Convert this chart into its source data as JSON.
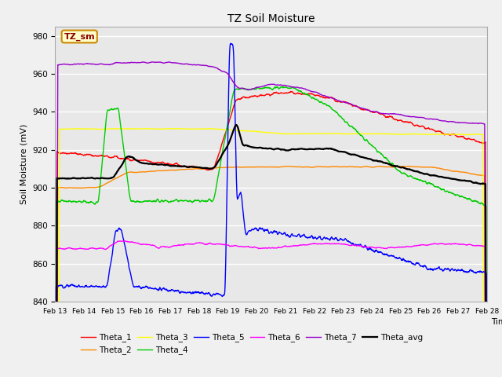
{
  "title": "TZ Soil Moisture",
  "xlabel": "Time",
  "ylabel": "Soil Moisture (mV)",
  "ylim": [
    840,
    985
  ],
  "xlim": [
    0,
    15
  ],
  "x_tick_labels": [
    "Feb 13",
    "Feb 14",
    "Feb 15",
    "Feb 16",
    "Feb 17",
    "Feb 18",
    "Feb 19",
    "Feb 20",
    "Feb 21",
    "Feb 22",
    "Feb 23",
    "Feb 24",
    "Feb 25",
    "Feb 26",
    "Feb 27",
    "Feb 28"
  ],
  "legend_label": "TZ_sm",
  "background_color": "#f0f0f0",
  "plot_bg_color": "#e8e8e8",
  "grid_color": "#ffffff",
  "series": {
    "Theta_1": {
      "color": "#ff0000"
    },
    "Theta_2": {
      "color": "#ff8800"
    },
    "Theta_3": {
      "color": "#ffff00"
    },
    "Theta_4": {
      "color": "#00cc00"
    },
    "Theta_5": {
      "color": "#0000ff"
    },
    "Theta_6": {
      "color": "#ff00ff"
    },
    "Theta_7": {
      "color": "#9900cc"
    },
    "Theta_avg": {
      "color": "#000000"
    }
  },
  "figsize": [
    6.4,
    4.8
  ],
  "dpi": 100
}
